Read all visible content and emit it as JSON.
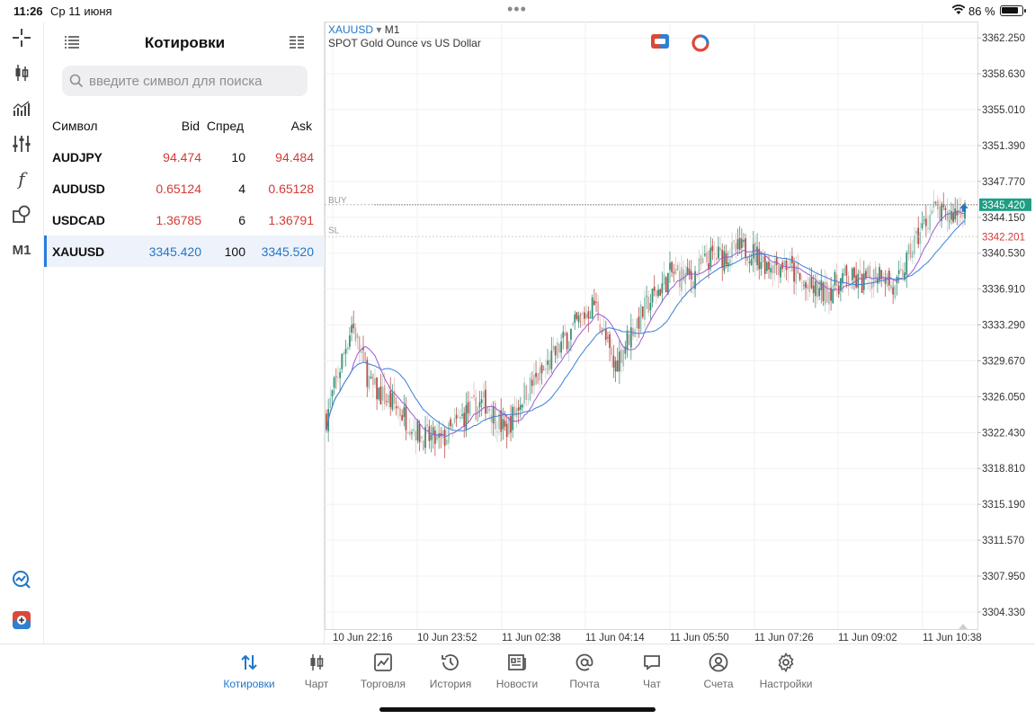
{
  "status_bar": {
    "time": "11:26",
    "date": "Ср 11 июня",
    "battery_pct": "86 %",
    "battery_level": 0.86
  },
  "left_toolbar": {
    "timeframe_label": "M1",
    "function_label": "f"
  },
  "quotes": {
    "title": "Котировки",
    "search_placeholder": "введите символ для поиска",
    "columns": {
      "symbol": "Символ",
      "bid": "Bid",
      "spread": "Спред",
      "ask": "Ask"
    },
    "rows": [
      {
        "symbol": "AUDJPY",
        "bid": "94.474",
        "spread": "10",
        "ask": "94.484",
        "direction": "down"
      },
      {
        "symbol": "AUDUSD",
        "bid": "0.65124",
        "spread": "4",
        "ask": "0.65128",
        "direction": "down"
      },
      {
        "symbol": "USDCAD",
        "bid": "1.36785",
        "spread": "6",
        "ask": "1.36791",
        "direction": "down"
      },
      {
        "symbol": "XAUUSD",
        "bid": "3345.420",
        "spread": "100",
        "ask": "3345.520",
        "direction": "up",
        "selected": true
      }
    ]
  },
  "chart": {
    "symbol": "XAUUSD",
    "timeframe": "M1",
    "description": "SPOT Gold Ounce vs US Dollar",
    "price_label": "3345.420",
    "sl_price_label": "3342.201",
    "buy_label": "BUY",
    "sl_label": "SL",
    "colors": {
      "up": "#2e8b6f",
      "down": "#b4463e",
      "ma_fast": "#9b59d0",
      "ma_slow": "#3b7fd8",
      "price_tag": "#1f9e84",
      "sl": "#d23b36"
    }
  },
  "chart_data": {
    "type": "candlestick",
    "title": "",
    "symbol": "XAUUSD",
    "timeframe": "M1",
    "y_ticks": [
      "3362.250",
      "3358.630",
      "3355.010",
      "3351.390",
      "3347.770",
      "3344.150",
      "3340.530",
      "3336.910",
      "3333.290",
      "3329.670",
      "3326.050",
      "3322.430",
      "3318.810",
      "3315.190",
      "3311.570",
      "3307.950",
      "3304.330"
    ],
    "x_ticks": [
      "10 Jun 22:16",
      "10 Jun 23:52",
      "11 Jun 02:38",
      "11 Jun 04:14",
      "11 Jun 05:50",
      "11 Jun 07:26",
      "11 Jun 09:02",
      "11 Jun 10:38"
    ],
    "ylim": [
      3302.6,
      3363.9
    ],
    "current_price": 3345.42,
    "sl_price": 3342.201,
    "close_path": [
      {
        "x": 0.0,
        "y": 3324.0
      },
      {
        "x": 0.04,
        "y": 3333.5
      },
      {
        "x": 0.07,
        "y": 3327.0
      },
      {
        "x": 0.11,
        "y": 3325.0
      },
      {
        "x": 0.15,
        "y": 3322.0
      },
      {
        "x": 0.18,
        "y": 3321.5
      },
      {
        "x": 0.22,
        "y": 3324.5
      },
      {
        "x": 0.25,
        "y": 3325.5
      },
      {
        "x": 0.28,
        "y": 3322.5
      },
      {
        "x": 0.31,
        "y": 3326.5
      },
      {
        "x": 0.34,
        "y": 3328.5
      },
      {
        "x": 0.37,
        "y": 3331.5
      },
      {
        "x": 0.4,
        "y": 3334.0
      },
      {
        "x": 0.42,
        "y": 3335.5
      },
      {
        "x": 0.45,
        "y": 3329.0
      },
      {
        "x": 0.48,
        "y": 3333.0
      },
      {
        "x": 0.51,
        "y": 3336.0
      },
      {
        "x": 0.54,
        "y": 3338.5
      },
      {
        "x": 0.57,
        "y": 3338.0
      },
      {
        "x": 0.6,
        "y": 3340.0
      },
      {
        "x": 0.63,
        "y": 3340.5
      },
      {
        "x": 0.66,
        "y": 3341.0
      },
      {
        "x": 0.69,
        "y": 3339.5
      },
      {
        "x": 0.72,
        "y": 3339.5
      },
      {
        "x": 0.75,
        "y": 3337.0
      },
      {
        "x": 0.78,
        "y": 3336.5
      },
      {
        "x": 0.81,
        "y": 3338.0
      },
      {
        "x": 0.84,
        "y": 3337.5
      },
      {
        "x": 0.87,
        "y": 3339.0
      },
      {
        "x": 0.89,
        "y": 3336.5
      },
      {
        "x": 0.92,
        "y": 3341.5
      },
      {
        "x": 0.95,
        "y": 3345.0
      },
      {
        "x": 0.97,
        "y": 3344.0
      },
      {
        "x": 1.0,
        "y": 3345.4
      }
    ]
  },
  "tabbar": {
    "tabs": [
      {
        "id": "quotes",
        "label": "Котировки",
        "icon": "arrows-updown-icon",
        "active": true
      },
      {
        "id": "chart",
        "label": "Чарт",
        "icon": "candlestick-icon",
        "active": false
      },
      {
        "id": "trade",
        "label": "Торговля",
        "icon": "trade-chart-icon",
        "active": false
      },
      {
        "id": "history",
        "label": "История",
        "icon": "history-icon",
        "active": false
      },
      {
        "id": "news",
        "label": "Новости",
        "icon": "news-icon",
        "active": false
      },
      {
        "id": "mail",
        "label": "Почта",
        "icon": "mail-at-icon",
        "active": false
      },
      {
        "id": "chat",
        "label": "Чат",
        "icon": "chat-icon",
        "active": false
      },
      {
        "id": "accounts",
        "label": "Счета",
        "icon": "account-icon",
        "active": false
      },
      {
        "id": "settings",
        "label": "Настройки",
        "icon": "gear-icon",
        "active": false
      }
    ]
  }
}
